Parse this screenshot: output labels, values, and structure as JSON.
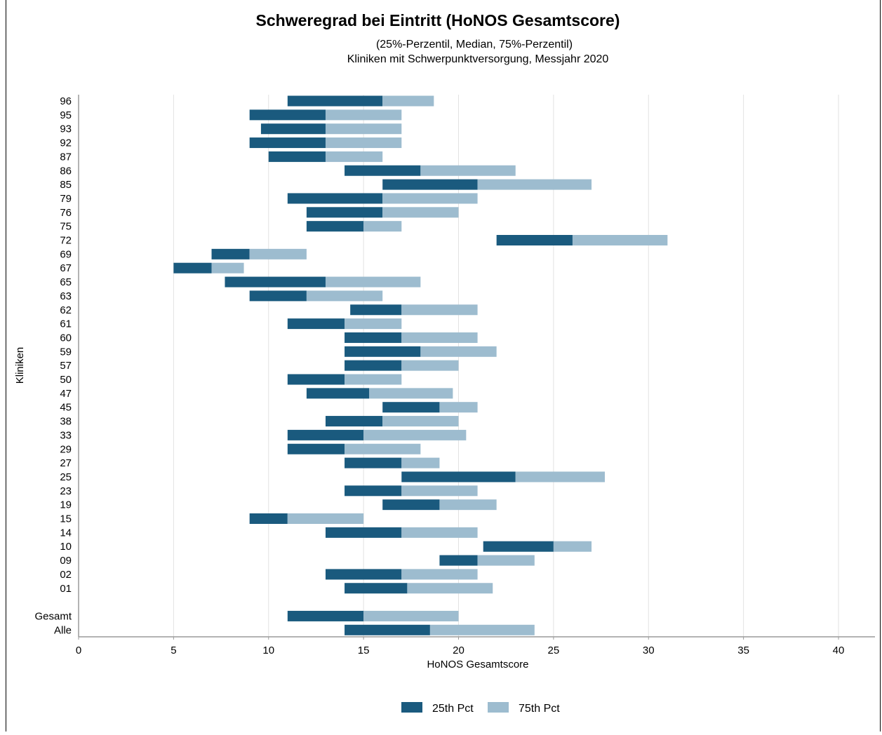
{
  "chart_data": {
    "type": "bar",
    "orientation": "horizontal",
    "layout": "floating range bars: 25th pct to median (dark), median to 75th pct (light)",
    "title": "Schweregrad bei Eintritt (HoNOS Gesamtscore)",
    "subtitle_lines": [
      "(25%-Perzentil, Median, 75%-Perzentil)",
      "Kliniken mit Schwerpunktversorgung, Messjahr 2020"
    ],
    "xlabel": "HoNOS Gesamtscore",
    "ylabel": "Kliniken",
    "xlim": [
      0,
      42
    ],
    "xticks": [
      0,
      5,
      10,
      15,
      20,
      25,
      30,
      35,
      40
    ],
    "grid": "vertical",
    "legend_position": "bottom",
    "colors": {
      "p25": "#1a5a7e",
      "p75": "#9dbccf",
      "grid": "#e2e2e2",
      "axis": "#9a9a9a"
    },
    "series": [
      {
        "name": "25th Pct",
        "color": "#1a5a7e"
      },
      {
        "name": "75th Pct",
        "color": "#9dbccf"
      }
    ],
    "categories": [
      "96",
      "95",
      "93",
      "92",
      "87",
      "86",
      "85",
      "79",
      "76",
      "75",
      "72",
      "69",
      "67",
      "65",
      "63",
      "62",
      "61",
      "60",
      "59",
      "57",
      "50",
      "47",
      "45",
      "38",
      "33",
      "29",
      "27",
      "25",
      "23",
      "19",
      "15",
      "14",
      "10",
      "09",
      "02",
      "01",
      "Gesamt",
      "Alle"
    ],
    "gap_before": [
      "Gesamt"
    ],
    "p25": [
      11,
      9,
      9.6,
      9,
      10,
      14,
      16,
      11,
      12,
      12,
      22,
      7,
      5,
      7.7,
      9,
      14.3,
      11,
      14,
      14,
      14,
      11,
      12,
      16,
      13,
      11,
      11,
      14,
      17,
      14,
      16,
      9,
      13,
      21.3,
      19,
      13,
      14,
      11,
      14
    ],
    "median": [
      16,
      13,
      13,
      13,
      13,
      18,
      21,
      16,
      16,
      15,
      26,
      9,
      7,
      13,
      12,
      17,
      14,
      17,
      18,
      17,
      14,
      15.3,
      19,
      16,
      15,
      14,
      17,
      23,
      17,
      19,
      11,
      17,
      25,
      21,
      17,
      17.3,
      15,
      18.5
    ],
    "p75": [
      18.7,
      17,
      17,
      17,
      16,
      23,
      27,
      21,
      20,
      17,
      31,
      12,
      8.7,
      18,
      16,
      21,
      17,
      21,
      22,
      20,
      17,
      19.7,
      21,
      20,
      20.4,
      18,
      19,
      27.7,
      21,
      22,
      15,
      21,
      27,
      24,
      21,
      21.8,
      20,
      24
    ]
  }
}
